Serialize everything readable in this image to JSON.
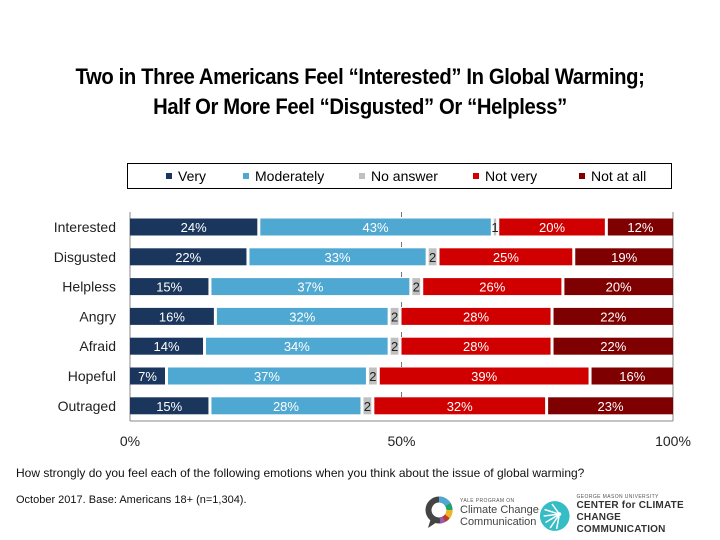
{
  "title": {
    "line1": "Two in Three Americans Feel “Interested” In Global Warming;",
    "line2": "Half Or More Feel “Disgusted” Or “Helpless”"
  },
  "chart_data": {
    "type": "bar",
    "orientation": "horizontal",
    "stacked": true,
    "normalized": true,
    "title": "Two in Three Americans Feel “Interested” In Global Warming; Half Or More Feel “Disgusted” Or “Helpless”",
    "xlabel": "",
    "ylabel": "",
    "xlim": [
      0,
      100
    ],
    "x_ticks": [
      "0%",
      "50%",
      "100%"
    ],
    "grid": false,
    "legend_position": "top",
    "categories": [
      "Interested",
      "Disgusted",
      "Helpless",
      "Angry",
      "Afraid",
      "Hopeful",
      "Outraged"
    ],
    "series": [
      {
        "name": "Very",
        "color": "#1b365d",
        "values": [
          24,
          22,
          15,
          16,
          14,
          7,
          15
        ]
      },
      {
        "name": "Moderately",
        "color": "#4fa8d1",
        "values": [
          43,
          33,
          37,
          32,
          34,
          37,
          28
        ]
      },
      {
        "name": "No answer",
        "color": "#c0c0c0",
        "values": [
          1,
          2,
          2,
          2,
          2,
          2,
          2
        ]
      },
      {
        "name": "Not very",
        "color": "#d10000",
        "values": [
          20,
          25,
          26,
          28,
          28,
          39,
          32
        ]
      },
      {
        "name": "Not at all",
        "color": "#7f0000",
        "values": [
          12,
          19,
          20,
          22,
          22,
          16,
          23
        ]
      }
    ],
    "label_format": {
      "Very": "%",
      "Moderately": "%",
      "No answer": "raw",
      "Not very": "%",
      "Not at all": "%"
    }
  },
  "legend": [
    {
      "label": "Very",
      "color": "#1b365d"
    },
    {
      "label": "Moderately",
      "color": "#4fa8d1"
    },
    {
      "label": "No answer",
      "color": "#c0c0c0"
    },
    {
      "label": "Not very",
      "color": "#d10000"
    },
    {
      "label": "Not at all",
      "color": "#7f0000"
    }
  ],
  "footer": {
    "question": "How strongly do you feel each of the following emotions when you think about the issue of global warming?",
    "base": "October 2017. Base: Americans 18+ (n=1,304)."
  },
  "logos": {
    "yale": {
      "small": "YALE PROGRAM ON",
      "line1": "Climate Change",
      "line2": "Communication"
    },
    "gmu": {
      "small": "GEORGE MASON UNIVERSITY",
      "line1": "CENTER for CLIMATE CHANGE",
      "line2": "COMMUNICATION"
    }
  }
}
